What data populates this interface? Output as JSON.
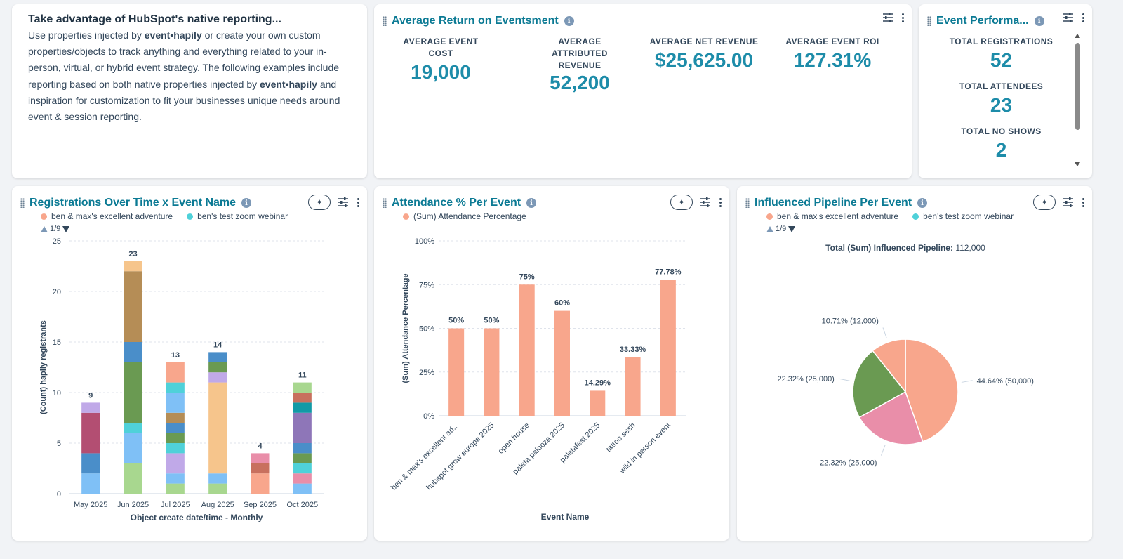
{
  "intro": {
    "title": "Take advantage of HubSpot's native reporting...",
    "p1": "Use properties injected by ",
    "brand": "event•hapily",
    "p2": " or create your own custom properties/objects to track anything and everything related to your in-person, virtual, or hybrid event strategy. The following examples include reporting based on both native properties injected by ",
    "p3": " and inspiration for customization to fit your businesses unique needs around event & session reporting."
  },
  "roi": {
    "title": "Average Return on Eventsment",
    "kpis": [
      {
        "label": "AVERAGE EVENT COST",
        "value": "19,000"
      },
      {
        "label": "AVERAGE ATTRIBUTED REVENUE",
        "value": "52,200"
      },
      {
        "label": "AVERAGE NET REVENUE",
        "value": "$25,625.00"
      },
      {
        "label": "AVERAGE EVENT ROI",
        "value": "127.31%"
      }
    ]
  },
  "perf": {
    "title": "Event Performa...",
    "kpis": [
      {
        "label": "TOTAL REGISTRATIONS",
        "value": "52"
      },
      {
        "label": "TOTAL ATTENDEES",
        "value": "23"
      },
      {
        "label": "TOTAL NO SHOWS",
        "value": "2"
      }
    ]
  },
  "reg": {
    "title": "Registrations Over Time x Event Name",
    "legend": [
      "ben & max's excellent adventure",
      "ben's test zoom webinar"
    ],
    "pager": "1/9"
  },
  "att": {
    "title": "Attendance % Per Event",
    "legend": [
      "(Sum) Attendance Percentage"
    ]
  },
  "pipe": {
    "title": "Influenced Pipeline Per Event",
    "legend": [
      "ben & max's excellent adventure",
      "ben's test zoom webinar"
    ],
    "pager": "1/9",
    "total_label": "Total (Sum) Influenced Pipeline:",
    "total_value": "112,000"
  },
  "colors": {
    "accent": "#0b7a94",
    "kpi": "#1d8ca9",
    "salmon": "#f8a68c",
    "teal": "#4fd1d9",
    "green": "#6a9a52",
    "pink": "#e98ea9"
  },
  "icons": {
    "info": "info-icon",
    "filter": "filter-icon",
    "menu": "kebab-menu-icon",
    "ai": "ai-sparkle-icon",
    "drag": "drag-handle-icon"
  },
  "chart_data": [
    {
      "type": "bar",
      "stacked": true,
      "categories": [
        "May 2025",
        "Jun 2025",
        "Jul 2025",
        "Aug 2025",
        "Sep 2025",
        "Oct 2025"
      ],
      "totals": [
        9,
        23,
        13,
        14,
        4,
        11
      ],
      "segments": [
        [
          {
            "v": 2,
            "c": "#7fc0f6"
          },
          {
            "v": 2,
            "c": "#4a8ec9"
          },
          {
            "v": 4,
            "c": "#b34e72"
          },
          {
            "v": 1,
            "c": "#c0a9e8"
          }
        ],
        [
          {
            "v": 3,
            "c": "#a8d78f"
          },
          {
            "v": 3,
            "c": "#7fc0f6"
          },
          {
            "v": 1,
            "c": "#4fd1d9"
          },
          {
            "v": 6,
            "c": "#6a9a52"
          },
          {
            "v": 2,
            "c": "#4a8ec9"
          },
          {
            "v": 7,
            "c": "#b58d56"
          },
          {
            "v": 1,
            "c": "#f6c58c"
          }
        ],
        [
          {
            "v": 1,
            "c": "#a8d78f"
          },
          {
            "v": 1,
            "c": "#7fc0f6"
          },
          {
            "v": 2,
            "c": "#c0a9e8"
          },
          {
            "v": 1,
            "c": "#4fd1d9"
          },
          {
            "v": 1,
            "c": "#6a9a52"
          },
          {
            "v": 1,
            "c": "#4a8ec9"
          },
          {
            "v": 1,
            "c": "#b58d56"
          },
          {
            "v": 2,
            "c": "#7fc0f6"
          },
          {
            "v": 1,
            "c": "#4fd1d9"
          },
          {
            "v": 2,
            "c": "#f8a68c"
          }
        ],
        [
          {
            "v": 1,
            "c": "#a8d78f"
          },
          {
            "v": 1,
            "c": "#7fc0f6"
          },
          {
            "v": 9,
            "c": "#f6c58c"
          },
          {
            "v": 1,
            "c": "#c0a9e8"
          },
          {
            "v": 1,
            "c": "#6a9a52"
          },
          {
            "v": 1,
            "c": "#4a8ec9"
          }
        ],
        [
          {
            "v": 2,
            "c": "#f8a68c"
          },
          {
            "v": 1,
            "c": "#c8705e"
          },
          {
            "v": 1,
            "c": "#e98ea9"
          }
        ],
        [
          {
            "v": 1,
            "c": "#7fc0f6"
          },
          {
            "v": 1,
            "c": "#e98ea9"
          },
          {
            "v": 1,
            "c": "#4fd1d9"
          },
          {
            "v": 1,
            "c": "#6a9a52"
          },
          {
            "v": 1,
            "c": "#4a8ec9"
          },
          {
            "v": 3,
            "c": "#8e76b8"
          },
          {
            "v": 1,
            "c": "#119aa6"
          },
          {
            "v": 1,
            "c": "#c8705e"
          },
          {
            "v": 1,
            "c": "#a8d78f"
          }
        ]
      ],
      "xlabel": "Object create date/time - Monthly",
      "ylabel": "(Count) hapily registrants",
      "ylim": [
        0,
        25
      ],
      "yticks": [
        0,
        5,
        10,
        15,
        20,
        25
      ]
    },
    {
      "type": "bar",
      "categories": [
        "ben & max's excellent ad...",
        "hubspot grow europe 2025",
        "open house",
        "paleta palooza 2025",
        "paletafest 2025",
        "tattoo sesh",
        "wild in person event"
      ],
      "values": [
        50,
        50,
        75,
        60,
        14.29,
        33.33,
        77.78
      ],
      "labels": [
        "50%",
        "50%",
        "75%",
        "60%",
        "14.29%",
        "33.33%",
        "77.78%"
      ],
      "xlabel": "Event Name",
      "ylabel": "(Sum) Attendance Percentage",
      "ylim": [
        0,
        100
      ],
      "yticks": [
        "0%",
        "25%",
        "50%",
        "75%",
        "100%"
      ]
    },
    {
      "type": "pie",
      "values": [
        50000,
        25000,
        25000,
        12000
      ],
      "labels": [
        "44.64% (50,000)",
        "22.32% (25,000)",
        "22.32% (25,000)",
        "10.71% (12,000)"
      ],
      "colors": [
        "#f8a68c",
        "#e98ea9",
        "#6a9a52",
        "#f8a68c"
      ]
    }
  ]
}
